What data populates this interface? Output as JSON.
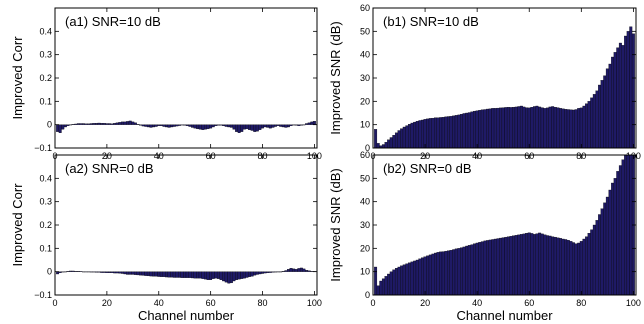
{
  "colors": {
    "bar_fill": "#1f1a66",
    "bar_edge": "#000000",
    "axes": "#000000"
  },
  "chart_data": [
    {
      "id": "a1",
      "type": "bar",
      "title": "(a1) SNR=10 dB",
      "xlabel": "",
      "ylabel": "Improved Corr",
      "xlim": [
        0,
        101
      ],
      "ylim": [
        -0.1,
        0.5
      ],
      "xticks": [
        0,
        20,
        40,
        60,
        80,
        100
      ],
      "yticks": [
        -0.1,
        0,
        0.1,
        0.2,
        0.3,
        0.4
      ],
      "ytick_labels": [
        "−0.1",
        "0",
        "0.1",
        "0.2",
        "0.3",
        "0.4"
      ],
      "x": [
        1,
        2,
        3,
        4,
        5,
        6,
        7,
        8,
        9,
        10,
        11,
        12,
        13,
        14,
        15,
        16,
        17,
        18,
        19,
        20,
        21,
        22,
        23,
        24,
        25,
        26,
        27,
        28,
        29,
        30,
        31,
        32,
        33,
        34,
        35,
        36,
        37,
        38,
        39,
        40,
        41,
        42,
        43,
        44,
        45,
        46,
        47,
        48,
        49,
        50,
        51,
        52,
        53,
        54,
        55,
        56,
        57,
        58,
        59,
        60,
        61,
        62,
        63,
        64,
        65,
        66,
        67,
        68,
        69,
        70,
        71,
        72,
        73,
        74,
        75,
        76,
        77,
        78,
        79,
        80,
        81,
        82,
        83,
        84,
        85,
        86,
        87,
        88,
        89,
        90,
        91,
        92,
        93,
        94,
        95,
        96,
        97,
        98,
        99,
        100
      ],
      "values": [
        -0.03,
        -0.035,
        -0.02,
        -0.01,
        -0.005,
        0,
        0.002,
        0.003,
        0.005,
        0.005,
        0.005,
        0.004,
        0.004,
        0.005,
        0.006,
        0.006,
        0.007,
        0.006,
        0.006,
        0.005,
        0.005,
        0.004,
        0.006,
        0.008,
        0.01,
        0.012,
        0.012,
        0.014,
        0.016,
        0.012,
        0.008,
        0.002,
        -0.003,
        -0.006,
        -0.008,
        -0.01,
        -0.012,
        -0.01,
        -0.008,
        -0.005,
        -0.005,
        -0.008,
        -0.01,
        -0.012,
        -0.01,
        -0.008,
        -0.006,
        -0.004,
        -0.002,
        -0.003,
        -0.005,
        -0.008,
        -0.012,
        -0.015,
        -0.018,
        -0.02,
        -0.022,
        -0.02,
        -0.018,
        -0.015,
        -0.01,
        -0.005,
        -0.003,
        -0.003,
        -0.005,
        -0.008,
        -0.01,
        -0.012,
        -0.02,
        -0.03,
        -0.035,
        -0.03,
        -0.02,
        -0.018,
        -0.022,
        -0.025,
        -0.03,
        -0.028,
        -0.022,
        -0.015,
        -0.01,
        -0.012,
        -0.015,
        -0.012,
        -0.008,
        -0.005,
        -0.008,
        -0.01,
        -0.012,
        -0.01,
        -0.005,
        -0.002,
        -0.003,
        -0.005,
        -0.003,
        0,
        0.005,
        0.008,
        0.012,
        0.015
      ]
    },
    {
      "id": "b1",
      "type": "bar",
      "title": "(b1) SNR=10 dB",
      "xlabel": "",
      "ylabel": "Improved SNR (dB)",
      "xlim": [
        0,
        101
      ],
      "ylim": [
        0,
        60
      ],
      "xticks": [
        0,
        20,
        40,
        60,
        80,
        100
      ],
      "yticks": [
        0,
        10,
        20,
        30,
        40,
        50,
        60
      ],
      "ytick_labels": [
        "0",
        "10",
        "20",
        "30",
        "40",
        "50",
        "60"
      ],
      "x": [
        1,
        2,
        3,
        4,
        5,
        6,
        7,
        8,
        9,
        10,
        11,
        12,
        13,
        14,
        15,
        16,
        17,
        18,
        19,
        20,
        21,
        22,
        23,
        24,
        25,
        26,
        27,
        28,
        29,
        30,
        31,
        32,
        33,
        34,
        35,
        36,
        37,
        38,
        39,
        40,
        41,
        42,
        43,
        44,
        45,
        46,
        47,
        48,
        49,
        50,
        51,
        52,
        53,
        54,
        55,
        56,
        57,
        58,
        59,
        60,
        61,
        62,
        63,
        64,
        65,
        66,
        67,
        68,
        69,
        70,
        71,
        72,
        73,
        74,
        75,
        76,
        77,
        78,
        79,
        80,
        81,
        82,
        83,
        84,
        85,
        86,
        87,
        88,
        89,
        90,
        91,
        92,
        93,
        94,
        95,
        96,
        97,
        98,
        99,
        100
      ],
      "values": [
        8,
        2,
        1,
        1.5,
        2.5,
        3.5,
        4.5,
        5.5,
        6.5,
        7.5,
        8.3,
        9,
        9.6,
        10.2,
        10.7,
        11.1,
        11.5,
        11.8,
        12,
        12.3,
        12.5,
        12.7,
        12.8,
        13,
        13,
        13.1,
        13.2,
        13.4,
        13.5,
        13.6,
        13.8,
        14,
        14.2,
        14.5,
        14.8,
        15,
        15.2,
        15.5,
        15.8,
        16,
        16.2,
        16.4,
        16.5,
        16.7,
        16.8,
        17,
        17,
        17.1,
        17.2,
        17.3,
        17.4,
        17.5,
        17.4,
        17.5,
        17.6,
        17.8,
        18,
        17.6,
        17.3,
        17.2,
        17.5,
        17.8,
        18,
        17.6,
        17.3,
        17,
        17.2,
        17.6,
        17.8,
        17.5,
        17.3,
        17,
        16.8,
        16.6,
        16.5,
        16.4,
        16.3,
        16.5,
        17,
        17.2,
        18,
        19,
        20,
        21.5,
        23,
        24.5,
        27,
        29,
        31,
        34,
        36,
        39,
        41,
        43,
        45,
        44,
        48,
        50,
        52,
        49
      ]
    },
    {
      "id": "a2",
      "type": "bar",
      "title": "(a2) SNR=0 dB",
      "xlabel": "Channel number",
      "ylabel": "Improved Corr",
      "xlim": [
        0,
        101
      ],
      "ylim": [
        -0.1,
        0.5
      ],
      "xticks": [
        0,
        20,
        40,
        60,
        80,
        100
      ],
      "yticks": [
        -0.1,
        0,
        0.1,
        0.2,
        0.3,
        0.4
      ],
      "ytick_labels": [
        "−0.1",
        "0",
        "0.1",
        "0.2",
        "0.3",
        "0.4"
      ],
      "x": [
        1,
        2,
        3,
        4,
        5,
        6,
        7,
        8,
        9,
        10,
        11,
        12,
        13,
        14,
        15,
        16,
        17,
        18,
        19,
        20,
        21,
        22,
        23,
        24,
        25,
        26,
        27,
        28,
        29,
        30,
        31,
        32,
        33,
        34,
        35,
        36,
        37,
        38,
        39,
        40,
        41,
        42,
        43,
        44,
        45,
        46,
        47,
        48,
        49,
        50,
        51,
        52,
        53,
        54,
        55,
        56,
        57,
        58,
        59,
        60,
        61,
        62,
        63,
        64,
        65,
        66,
        67,
        68,
        69,
        70,
        71,
        72,
        73,
        74,
        75,
        76,
        77,
        78,
        79,
        80,
        81,
        82,
        83,
        84,
        85,
        86,
        87,
        88,
        89,
        90,
        91,
        92,
        93,
        94,
        95,
        96,
        97,
        98,
        99,
        100
      ],
      "values": [
        -0.01,
        -0.005,
        -0.002,
        0,
        0.002,
        0.003,
        0.003,
        0.002,
        0.002,
        0.001,
        0,
        0,
        -0.001,
        -0.002,
        -0.002,
        -0.003,
        -0.003,
        -0.004,
        -0.004,
        -0.005,
        -0.005,
        -0.005,
        -0.006,
        -0.006,
        -0.007,
        -0.008,
        -0.01,
        -0.012,
        -0.012,
        -0.012,
        -0.013,
        -0.014,
        -0.015,
        -0.016,
        -0.017,
        -0.018,
        -0.019,
        -0.02,
        -0.02,
        -0.021,
        -0.022,
        -0.022,
        -0.023,
        -0.024,
        -0.024,
        -0.025,
        -0.025,
        -0.025,
        -0.026,
        -0.026,
        -0.026,
        -0.026,
        -0.027,
        -0.028,
        -0.028,
        -0.028,
        -0.03,
        -0.032,
        -0.035,
        -0.035,
        -0.03,
        -0.028,
        -0.03,
        -0.035,
        -0.04,
        -0.045,
        -0.05,
        -0.048,
        -0.04,
        -0.035,
        -0.032,
        -0.03,
        -0.028,
        -0.025,
        -0.022,
        -0.02,
        -0.015,
        -0.012,
        -0.01,
        -0.008,
        -0.006,
        -0.005,
        -0.004,
        -0.003,
        -0.002,
        -0.001,
        0,
        0.002,
        0.005,
        0.01,
        0.015,
        0.012,
        0.01,
        0.014,
        0.016,
        0.012,
        0.006,
        0.004,
        0.002,
        0.001
      ]
    },
    {
      "id": "b2",
      "type": "bar",
      "title": "(b2) SNR=0 dB",
      "xlabel": "Channel number",
      "ylabel": "Improved SNR (dB)",
      "xlim": [
        0,
        101
      ],
      "ylim": [
        0,
        60
      ],
      "xticks": [
        0,
        20,
        40,
        60,
        80,
        100
      ],
      "yticks": [
        0,
        10,
        20,
        30,
        40,
        50,
        60
      ],
      "ytick_labels": [
        "0",
        "10",
        "20",
        "30",
        "40",
        "50",
        "60"
      ],
      "x": [
        1,
        2,
        3,
        4,
        5,
        6,
        7,
        8,
        9,
        10,
        11,
        12,
        13,
        14,
        15,
        16,
        17,
        18,
        19,
        20,
        21,
        22,
        23,
        24,
        25,
        26,
        27,
        28,
        29,
        30,
        31,
        32,
        33,
        34,
        35,
        36,
        37,
        38,
        39,
        40,
        41,
        42,
        43,
        44,
        45,
        46,
        47,
        48,
        49,
        50,
        51,
        52,
        53,
        54,
        55,
        56,
        57,
        58,
        59,
        60,
        61,
        62,
        63,
        64,
        65,
        66,
        67,
        68,
        69,
        70,
        71,
        72,
        73,
        74,
        75,
        76,
        77,
        78,
        79,
        80,
        81,
        82,
        83,
        84,
        85,
        86,
        87,
        88,
        89,
        90,
        91,
        92,
        93,
        94,
        95,
        96,
        97,
        98,
        99,
        100
      ],
      "values": [
        12,
        4,
        6,
        7,
        8,
        9,
        10,
        10.8,
        11.5,
        12,
        12.5,
        13,
        13.4,
        13.8,
        14.2,
        14.6,
        15,
        15.5,
        16,
        16.4,
        16.8,
        17.2,
        17.6,
        18,
        18.3,
        18.5,
        18.6,
        18.8,
        19,
        19.2,
        19.5,
        19.8,
        20,
        20.3,
        20.6,
        21,
        21.3,
        21.6,
        22,
        22.3,
        22.6,
        22.9,
        23.2,
        23.4,
        23.6,
        23.8,
        24,
        24.2,
        24.4,
        24.6,
        24.8,
        25,
        25.2,
        25.4,
        25.6,
        25.8,
        26,
        26.2,
        26.5,
        26.7,
        26.4,
        26,
        26.3,
        26.6,
        26.2,
        25.8,
        25.5,
        25.3,
        25,
        24.8,
        24.5,
        24.3,
        24,
        23.8,
        23.5,
        23,
        22.5,
        22,
        22.3,
        23,
        24,
        25,
        26.5,
        28,
        30,
        32,
        34.5,
        37,
        39.5,
        42,
        45,
        48,
        50,
        53,
        55.5,
        58,
        60,
        60,
        60,
        60
      ]
    }
  ]
}
